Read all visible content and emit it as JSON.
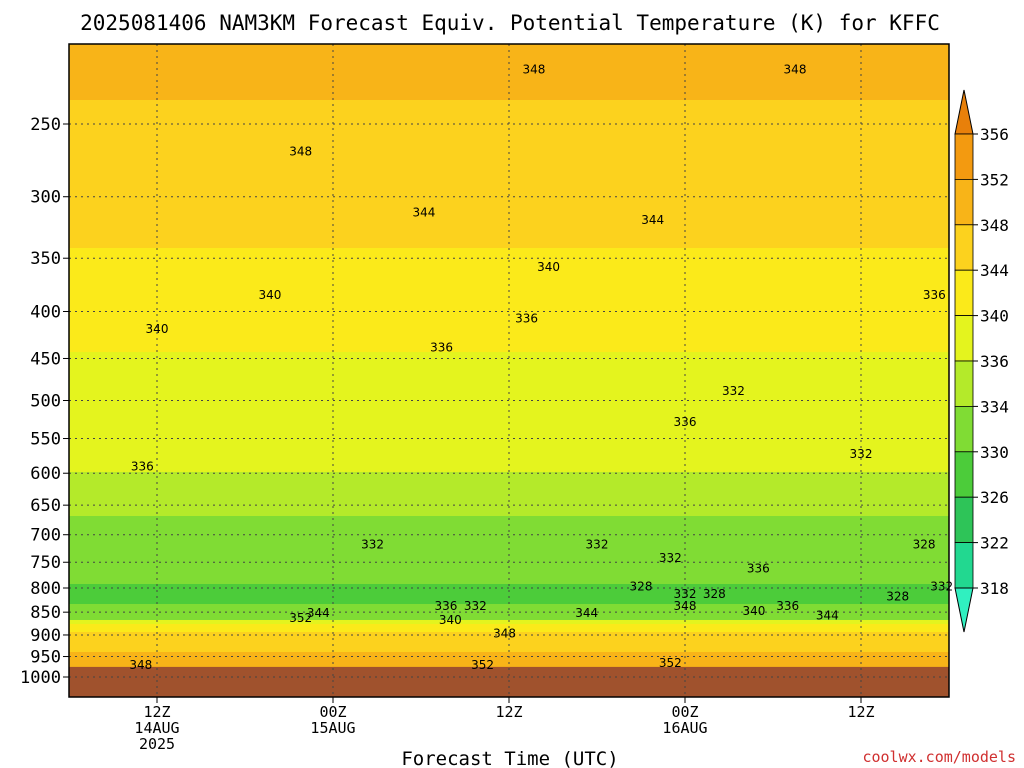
{
  "chart_data": {
    "type": "heatmap",
    "title": "2025081406 NAM3KM Forecast Equiv. Potential Temperature (K) for KFFC",
    "xlabel": "Forecast Time (UTC)",
    "ylabel": "",
    "y_scale": "log-pressure (hPa), inverted",
    "y_ticks": [
      250,
      300,
      350,
      400,
      450,
      500,
      550,
      600,
      650,
      700,
      750,
      800,
      850,
      900,
      950,
      1000
    ],
    "ylim": [
      1000,
      200
    ],
    "x_ticks": [
      {
        "hours": 6,
        "line1": "12Z",
        "line2": "14AUG",
        "line3": "2025"
      },
      {
        "hours": 18,
        "line1": "00Z",
        "line2": "15AUG",
        "line3": ""
      },
      {
        "hours": 30,
        "line1": "12Z",
        "line2": "",
        "line3": ""
      },
      {
        "hours": 42,
        "line1": "00Z",
        "line2": "16AUG",
        "line3": ""
      },
      {
        "hours": 54,
        "line1": "12Z",
        "line2": "",
        "line3": ""
      }
    ],
    "xlim_hours": [
      0,
      60
    ],
    "grid": "dotted",
    "colorbar": {
      "levels": [
        356,
        352,
        348,
        344,
        340,
        336,
        334,
        330,
        326,
        322,
        318
      ],
      "colors": [
        "#e8800a",
        "#f39a10",
        "#f8b418",
        "#fcd21e",
        "#fbea1a",
        "#e4f41e",
        "#b4ea2a",
        "#80dc34",
        "#4ccc3a",
        "#2ec458",
        "#22d890",
        "#30f0c0"
      ]
    },
    "band_levels_hPa": [
      200,
      270,
      340,
      470,
      640,
      760,
      820,
      860,
      890,
      975,
      1000
    ],
    "band_values_K": [
      349,
      347,
      344,
      339,
      335,
      331,
      329,
      333,
      344,
      351,
      352
    ],
    "contour_labels": [
      {
        "text": "348",
        "hours": 31.7,
        "p": 218
      },
      {
        "text": "348",
        "hours": 49.5,
        "p": 218
      },
      {
        "text": "348",
        "hours": 15.8,
        "p": 268
      },
      {
        "text": "344",
        "hours": 24.2,
        "p": 312
      },
      {
        "text": "344",
        "hours": 39.8,
        "p": 318
      },
      {
        "text": "340",
        "hours": 32.7,
        "p": 358
      },
      {
        "text": "340",
        "hours": 13.7,
        "p": 384
      },
      {
        "text": "336",
        "hours": 59.0,
        "p": 384
      },
      {
        "text": "340",
        "hours": 6.0,
        "p": 418
      },
      {
        "text": "336",
        "hours": 31.2,
        "p": 407
      },
      {
        "text": "336",
        "hours": 25.4,
        "p": 438
      },
      {
        "text": "332",
        "hours": 45.3,
        "p": 488
      },
      {
        "text": "336",
        "hours": 42.0,
        "p": 528
      },
      {
        "text": "336",
        "hours": 5.0,
        "p": 590
      },
      {
        "text": "332",
        "hours": 54.0,
        "p": 572
      },
      {
        "text": "332",
        "hours": 20.7,
        "p": 717
      },
      {
        "text": "332",
        "hours": 36.0,
        "p": 717
      },
      {
        "text": "332",
        "hours": 41.0,
        "p": 742
      },
      {
        "text": "336",
        "hours": 47.0,
        "p": 762
      },
      {
        "text": "328",
        "hours": 58.3,
        "p": 717
      },
      {
        "text": "328",
        "hours": 39.0,
        "p": 797
      },
      {
        "text": "332",
        "hours": 42.0,
        "p": 812
      },
      {
        "text": "328",
        "hours": 44.0,
        "p": 812
      },
      {
        "text": "332",
        "hours": 59.5,
        "p": 797
      },
      {
        "text": "328",
        "hours": 56.5,
        "p": 817
      },
      {
        "text": "336",
        "hours": 25.7,
        "p": 837
      },
      {
        "text": "332",
        "hours": 27.7,
        "p": 837
      },
      {
        "text": "348",
        "hours": 42.0,
        "p": 837
      },
      {
        "text": "336",
        "hours": 49.0,
        "p": 837
      },
      {
        "text": "340",
        "hours": 46.7,
        "p": 847
      },
      {
        "text": "344",
        "hours": 17.0,
        "p": 852
      },
      {
        "text": "352",
        "hours": 15.8,
        "p": 862
      },
      {
        "text": "344",
        "hours": 35.3,
        "p": 852
      },
      {
        "text": "344",
        "hours": 51.7,
        "p": 857
      },
      {
        "text": "340",
        "hours": 26.0,
        "p": 867
      },
      {
        "text": "348",
        "hours": 29.7,
        "p": 897
      },
      {
        "text": "352",
        "hours": 28.2,
        "p": 970
      },
      {
        "text": "352",
        "hours": 41.0,
        "p": 965
      },
      {
        "text": "348",
        "hours": 4.9,
        "p": 970
      }
    ],
    "credit": "coolwx.com/models"
  }
}
